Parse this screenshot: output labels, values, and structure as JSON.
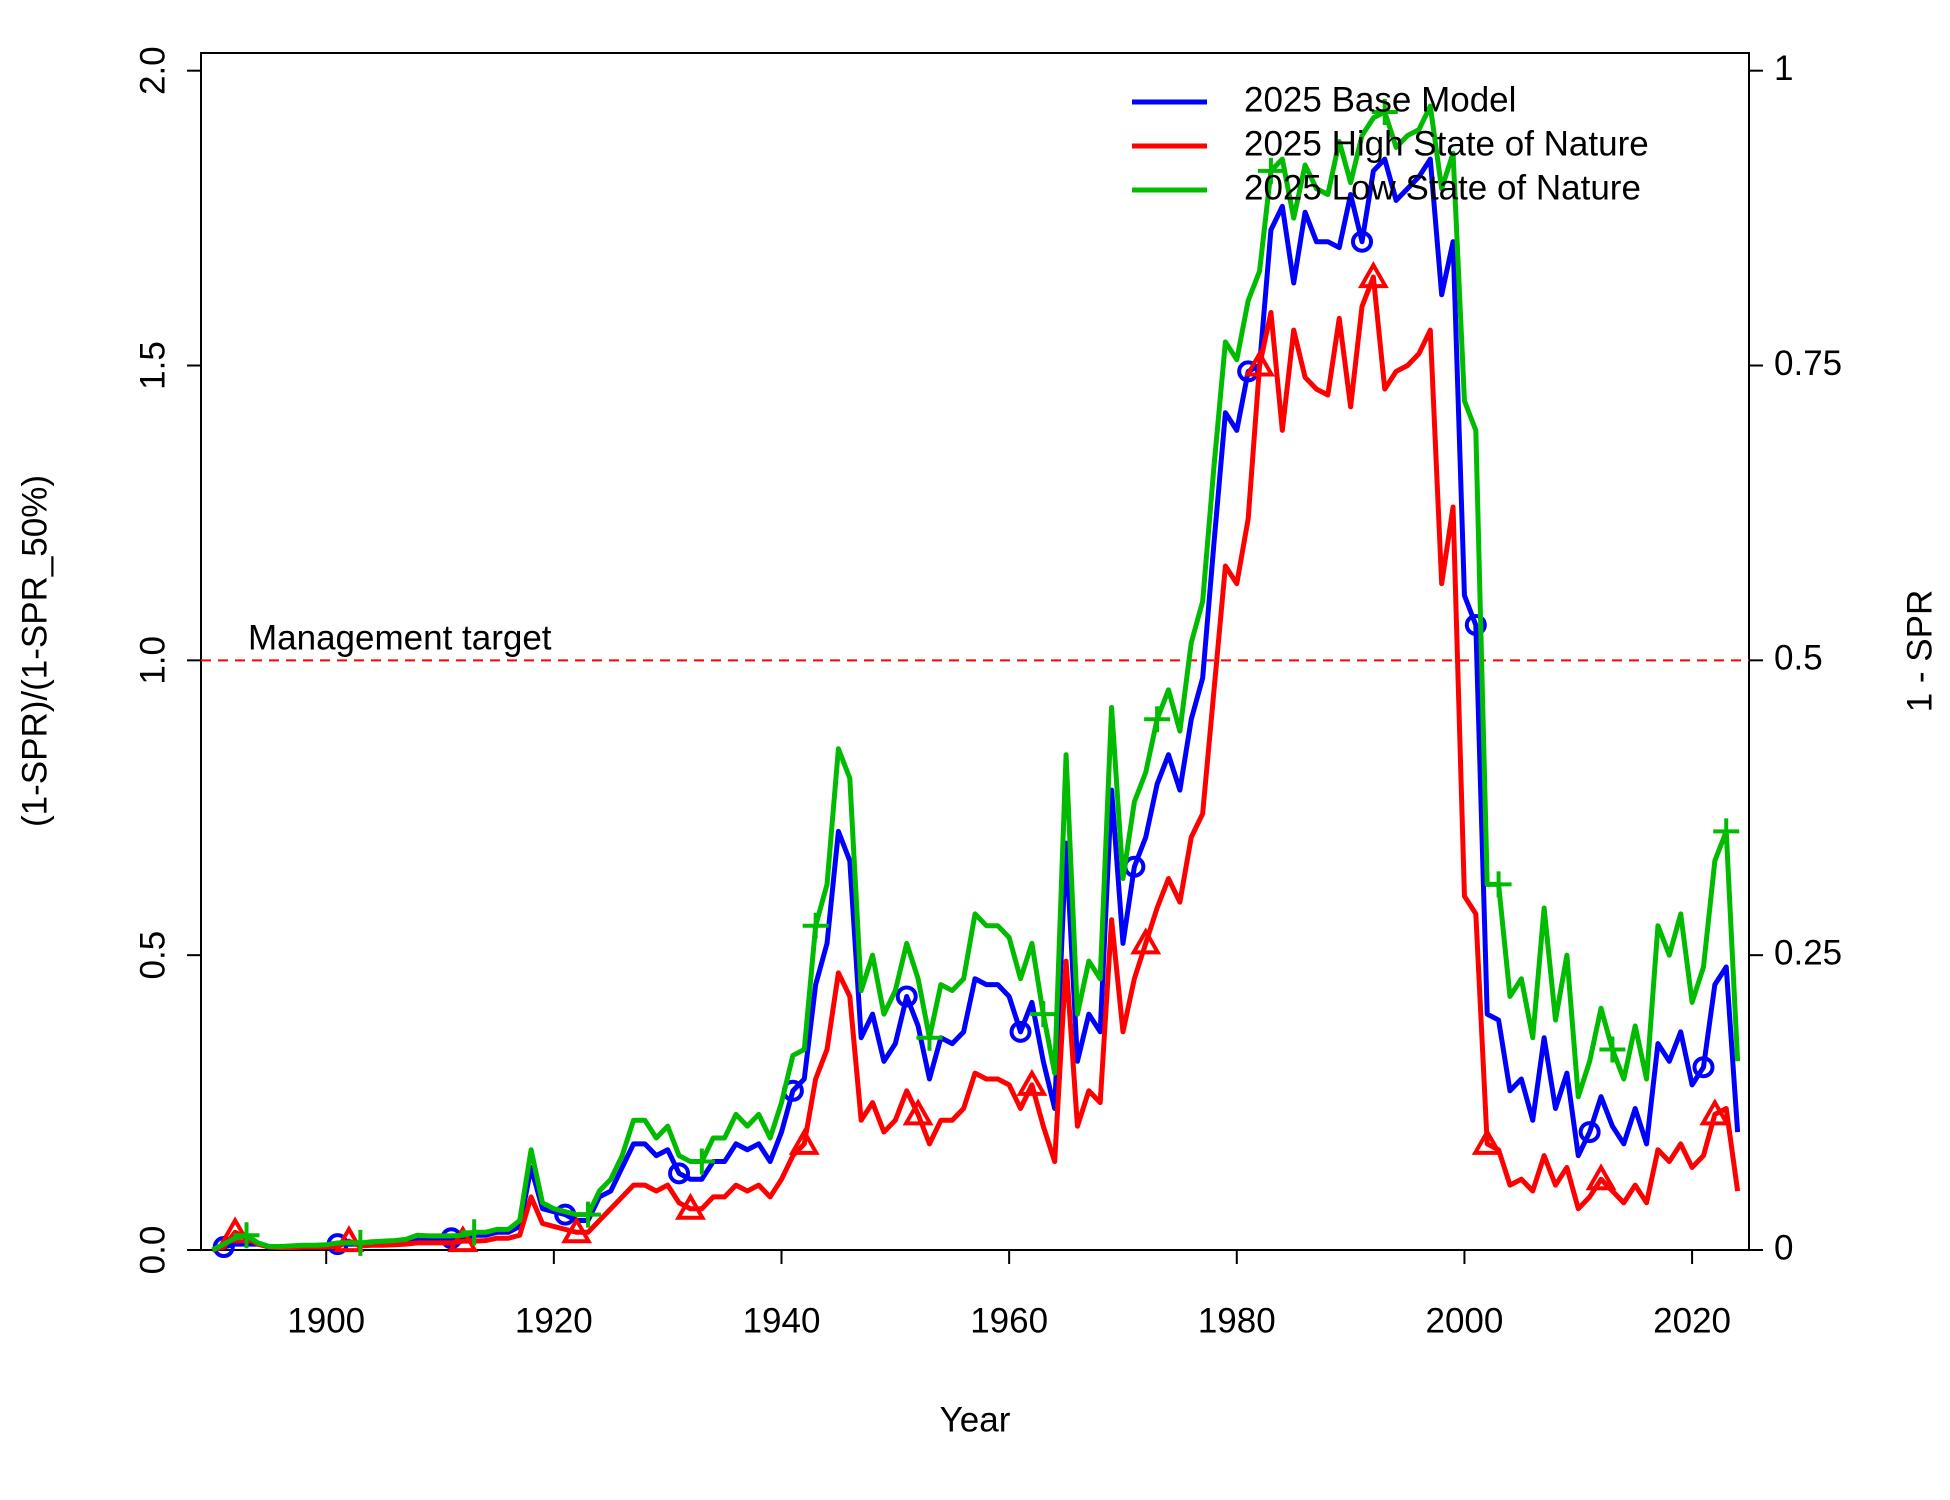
{
  "chart_data": {
    "type": "line",
    "xlabel": "Year",
    "ylabel": "(1-SPR)/(1-SPR_50%)",
    "y2label": "1 - SPR",
    "xlim": [
      1889,
      2025
    ],
    "ylim": [
      0,
      2.03
    ],
    "y2lim": [
      0,
      1.015
    ],
    "xticks": [
      1900,
      1920,
      1940,
      1960,
      1980,
      2000,
      2020
    ],
    "yticks": [
      {
        "value": 0,
        "label": "0.0"
      },
      0.5,
      {
        "value": 1,
        "label": "1.0"
      },
      1.5,
      {
        "value": 2,
        "label": "2.0"
      }
    ],
    "y2ticks": [
      0,
      0.25,
      0.5,
      0.75,
      1
    ],
    "legend": "topright",
    "hline": {
      "value": 1,
      "label": "Management target",
      "color": "#ff0000"
    },
    "x": [
      1890,
      1891,
      1892,
      1893,
      1894,
      1895,
      1896,
      1897,
      1898,
      1899,
      1900,
      1901,
      1902,
      1903,
      1904,
      1905,
      1906,
      1907,
      1908,
      1909,
      1910,
      1911,
      1912,
      1913,
      1914,
      1915,
      1916,
      1917,
      1918,
      1919,
      1920,
      1921,
      1922,
      1923,
      1924,
      1925,
      1926,
      1927,
      1928,
      1929,
      1930,
      1931,
      1932,
      1933,
      1934,
      1935,
      1936,
      1937,
      1938,
      1939,
      1940,
      1941,
      1942,
      1943,
      1944,
      1945,
      1946,
      1947,
      1948,
      1949,
      1950,
      1951,
      1952,
      1953,
      1954,
      1955,
      1956,
      1957,
      1958,
      1959,
      1960,
      1961,
      1962,
      1963,
      1964,
      1965,
      1966,
      1967,
      1968,
      1969,
      1970,
      1971,
      1972,
      1973,
      1974,
      1975,
      1976,
      1977,
      1978,
      1979,
      1980,
      1981,
      1982,
      1983,
      1984,
      1985,
      1986,
      1987,
      1988,
      1989,
      1990,
      1991,
      1992,
      1993,
      1994,
      1995,
      1996,
      1997,
      1998,
      1999,
      2000,
      2001,
      2002,
      2003,
      2004,
      2005,
      2006,
      2007,
      2008,
      2009,
      2010,
      2011,
      2012,
      2013,
      2014,
      2015,
      2016,
      2017,
      2018,
      2019,
      2020,
      2021,
      2022,
      2023,
      2024
    ],
    "series": [
      {
        "name": "2025 Base Model",
        "color": "#0000ff",
        "marker": "circle",
        "values": [
          0,
          0.005,
          0.01,
          0.01,
          0.01,
          0.005,
          0.005,
          0.005,
          0.007,
          0.007,
          0.008,
          0.01,
          0.01,
          0.01,
          0.012,
          0.012,
          0.013,
          0.015,
          0.02,
          0.02,
          0.02,
          0.02,
          0.02,
          0.025,
          0.025,
          0.03,
          0.03,
          0.04,
          0.14,
          0.07,
          0.065,
          0.06,
          0.05,
          0.05,
          0.09,
          0.1,
          0.14,
          0.18,
          0.18,
          0.16,
          0.17,
          0.13,
          0.12,
          0.12,
          0.15,
          0.15,
          0.18,
          0.17,
          0.18,
          0.15,
          0.2,
          0.27,
          0.29,
          0.45,
          0.52,
          0.71,
          0.66,
          0.36,
          0.4,
          0.32,
          0.35,
          0.43,
          0.38,
          0.29,
          0.36,
          0.35,
          0.37,
          0.46,
          0.45,
          0.45,
          0.43,
          0.37,
          0.42,
          0.32,
          0.24,
          0.69,
          0.32,
          0.4,
          0.37,
          0.78,
          0.52,
          0.65,
          0.7,
          0.79,
          0.84,
          0.78,
          0.9,
          0.97,
          1.2,
          1.42,
          1.39,
          1.49,
          1.5,
          1.73,
          1.77,
          1.64,
          1.76,
          1.71,
          1.71,
          1.7,
          1.79,
          1.71,
          1.83,
          1.85,
          1.78,
          1.8,
          1.82,
          1.85,
          1.62,
          1.71,
          1.11,
          1.06,
          0.4,
          0.39,
          0.27,
          0.29,
          0.22,
          0.36,
          0.24,
          0.3,
          0.16,
          0.2,
          0.26,
          0.21,
          0.18,
          0.24,
          0.18,
          0.35,
          0.32,
          0.37,
          0.28,
          0.31,
          0.45,
          0.48,
          0.2
        ]
      },
      {
        "name": "2025 High State of Nature",
        "color": "#ff0000",
        "marker": "triangle",
        "values": [
          0,
          0.005,
          0.03,
          0.02,
          0.01,
          0.005,
          0.004,
          0.004,
          0.005,
          0.005,
          0.005,
          0.006,
          0.015,
          0.007,
          0.008,
          0.008,
          0.009,
          0.01,
          0.012,
          0.012,
          0.012,
          0.012,
          0.015,
          0.015,
          0.016,
          0.02,
          0.02,
          0.025,
          0.09,
          0.045,
          0.04,
          0.035,
          0.03,
          0.03,
          0.05,
          0.07,
          0.09,
          0.11,
          0.11,
          0.1,
          0.11,
          0.08,
          0.07,
          0.07,
          0.09,
          0.09,
          0.11,
          0.1,
          0.11,
          0.09,
          0.12,
          0.16,
          0.18,
          0.29,
          0.34,
          0.47,
          0.43,
          0.22,
          0.25,
          0.2,
          0.22,
          0.27,
          0.23,
          0.18,
          0.22,
          0.22,
          0.24,
          0.3,
          0.29,
          0.29,
          0.28,
          0.24,
          0.28,
          0.21,
          0.15,
          0.49,
          0.21,
          0.27,
          0.25,
          0.56,
          0.37,
          0.46,
          0.52,
          0.58,
          0.63,
          0.59,
          0.7,
          0.74,
          0.95,
          1.16,
          1.13,
          1.24,
          1.5,
          1.59,
          1.39,
          1.56,
          1.48,
          1.46,
          1.45,
          1.58,
          1.43,
          1.6,
          1.65,
          1.46,
          1.49,
          1.5,
          1.52,
          1.56,
          1.13,
          1.26,
          0.6,
          0.57,
          0.18,
          0.17,
          0.11,
          0.12,
          0.1,
          0.16,
          0.11,
          0.14,
          0.07,
          0.09,
          0.12,
          0.1,
          0.08,
          0.11,
          0.08,
          0.17,
          0.15,
          0.18,
          0.14,
          0.16,
          0.23,
          0.24,
          0.1
        ]
      },
      {
        "name": "2025 Low State of Nature",
        "color": "#00bb00",
        "marker": "plus",
        "values": [
          0,
          0.01,
          0.02,
          0.025,
          0.012,
          0.006,
          0.006,
          0.007,
          0.008,
          0.008,
          0.009,
          0.012,
          0.012,
          0.012,
          0.014,
          0.015,
          0.016,
          0.018,
          0.025,
          0.024,
          0.024,
          0.024,
          0.025,
          0.03,
          0.03,
          0.035,
          0.035,
          0.05,
          0.17,
          0.08,
          0.07,
          0.065,
          0.06,
          0.06,
          0.1,
          0.12,
          0.16,
          0.22,
          0.22,
          0.19,
          0.21,
          0.16,
          0.15,
          0.15,
          0.19,
          0.19,
          0.23,
          0.21,
          0.23,
          0.19,
          0.25,
          0.33,
          0.34,
          0.55,
          0.62,
          0.85,
          0.8,
          0.44,
          0.5,
          0.4,
          0.44,
          0.52,
          0.46,
          0.36,
          0.45,
          0.44,
          0.46,
          0.57,
          0.55,
          0.55,
          0.53,
          0.46,
          0.52,
          0.4,
          0.3,
          0.84,
          0.4,
          0.49,
          0.46,
          0.92,
          0.63,
          0.76,
          0.81,
          0.9,
          0.95,
          0.88,
          1.03,
          1.1,
          1.33,
          1.54,
          1.51,
          1.61,
          1.66,
          1.83,
          1.85,
          1.75,
          1.84,
          1.8,
          1.79,
          1.88,
          1.81,
          1.89,
          1.92,
          1.93,
          1.87,
          1.89,
          1.9,
          1.94,
          1.8,
          1.86,
          1.44,
          1.39,
          0.62,
          0.62,
          0.43,
          0.46,
          0.36,
          0.58,
          0.39,
          0.5,
          0.26,
          0.32,
          0.41,
          0.34,
          0.29,
          0.38,
          0.29,
          0.55,
          0.5,
          0.57,
          0.42,
          0.48,
          0.66,
          0.71,
          0.32
        ]
      }
    ]
  }
}
